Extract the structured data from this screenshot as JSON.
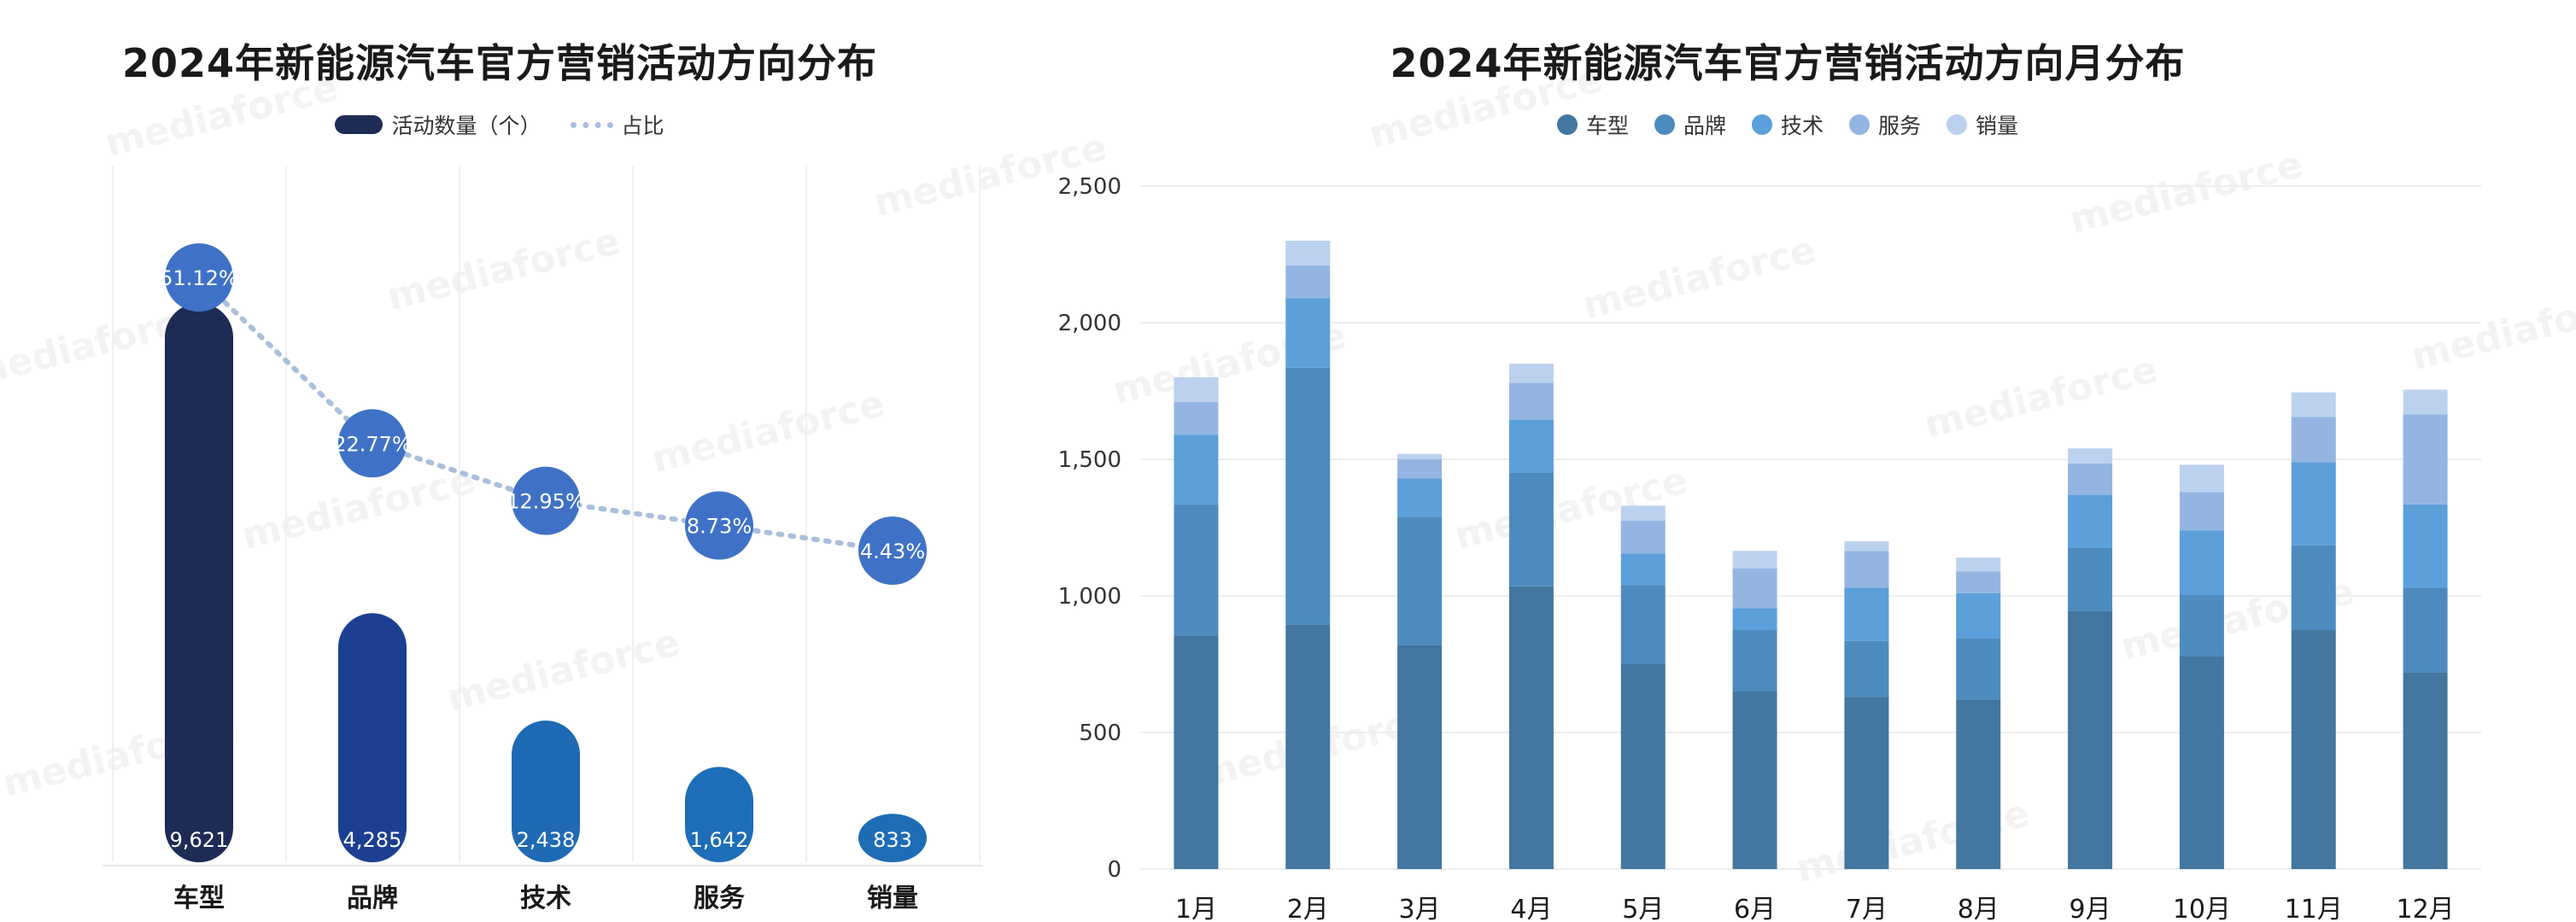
{
  "watermark": "mediaforce",
  "chart_data": [
    {
      "type": "bar",
      "title": "2024年新能源汽车官方营销活动方向分布",
      "legend": [
        "活动数量（个）",
        "占比"
      ],
      "categories": [
        "车型",
        "品牌",
        "技术",
        "服务",
        "销量"
      ],
      "values": [
        9621,
        4285,
        2438,
        1642,
        833
      ],
      "value_labels": [
        "9,621",
        "4,285",
        "2,438",
        "1,642",
        "833"
      ],
      "share": [
        51.12,
        22.77,
        12.95,
        8.73,
        4.43
      ],
      "share_labels": [
        "51.12%",
        "22.77%",
        "12.95%",
        "8.73%",
        "4.43%"
      ],
      "bar_colors": [
        "#1d2b55",
        "#1c3f91",
        "#1f6ab4",
        "#1e6db8",
        "#1f6cb6"
      ],
      "share_line_color": "#a9bfdc",
      "share_bubble_color": "#3f72c6",
      "grid": true,
      "legend_position": "top-center"
    },
    {
      "type": "bar",
      "stacked": true,
      "title": "2024年新能源汽车官方营销活动方向月分布",
      "categories": [
        "1月",
        "2月",
        "3月",
        "4月",
        "5月",
        "6月",
        "7月",
        "8月",
        "9月",
        "10月",
        "11月",
        "12月"
      ],
      "series": [
        {
          "name": "车型",
          "color": "#43779f",
          "values": [
            855,
            895,
            820,
            1035,
            750,
            650,
            630,
            620,
            945,
            780,
            875,
            720
          ]
        },
        {
          "name": "品牌",
          "color": "#4d8bbf",
          "values": [
            480,
            940,
            470,
            415,
            290,
            225,
            205,
            225,
            230,
            225,
            310,
            310
          ]
        },
        {
          "name": "技术",
          "color": "#5b9fdb",
          "values": [
            255,
            255,
            140,
            195,
            115,
            80,
            195,
            165,
            195,
            235,
            305,
            305
          ]
        },
        {
          "name": "服务",
          "color": "#94b5e2",
          "values": [
            120,
            120,
            70,
            135,
            120,
            145,
            135,
            80,
            115,
            140,
            165,
            330
          ]
        },
        {
          "name": "销量",
          "color": "#bcd1ee",
          "values": [
            90,
            90,
            20,
            70,
            55,
            65,
            35,
            50,
            55,
            100,
            90,
            90
          ]
        }
      ],
      "ylim": [
        0,
        2500
      ],
      "yticks": [
        0,
        500,
        1000,
        1500,
        2000,
        2500
      ],
      "ytick_labels": [
        "0",
        "500",
        "1,000",
        "1,500",
        "2,000",
        "2,500"
      ],
      "grid": true,
      "legend_position": "top-center"
    }
  ]
}
